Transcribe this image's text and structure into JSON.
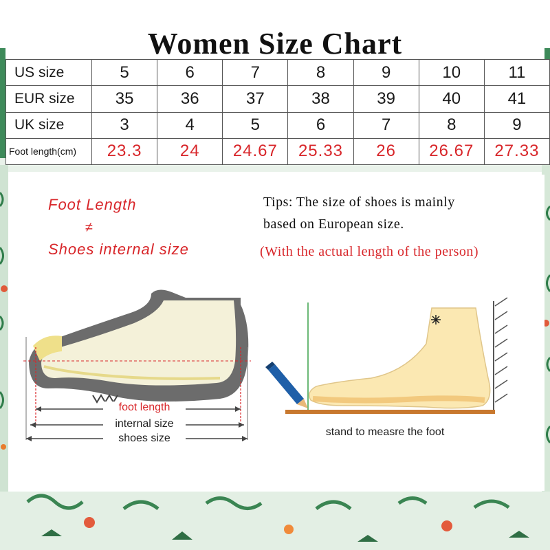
{
  "title": "Women Size Chart",
  "table": {
    "rows": [
      {
        "label": "US size",
        "values": [
          "5",
          "6",
          "7",
          "8",
          "9",
          "10",
          "11"
        ]
      },
      {
        "label": "EUR size",
        "values": [
          "35",
          "36",
          "37",
          "38",
          "39",
          "40",
          "41"
        ]
      },
      {
        "label": "UK size",
        "values": [
          "3",
          "4",
          "5",
          "6",
          "7",
          "8",
          "9"
        ]
      },
      {
        "label": "Foot length(cm)",
        "values": [
          "23.3",
          "24",
          "24.67",
          "25.33",
          "26",
          "26.67",
          "27.33"
        ]
      }
    ]
  },
  "left_panel": {
    "foot_length": "Foot Length",
    "not_equal": "≠",
    "shoes_internal_size": "Shoes internal size",
    "labels": {
      "foot_length": "foot length",
      "internal_size": "internal size",
      "shoes_size": "shoes size"
    }
  },
  "right_panel": {
    "tip_line1": "Tips: The size of shoes is mainly",
    "tip_line2": "based on European size.",
    "tip_note": "(With the actual length of the person)",
    "caption": "stand to measre the foot"
  },
  "colors": {
    "accent_red": "#d8262a",
    "foot_fill": "#fbe8b2",
    "shoe_grey": "#6c6c6c"
  }
}
